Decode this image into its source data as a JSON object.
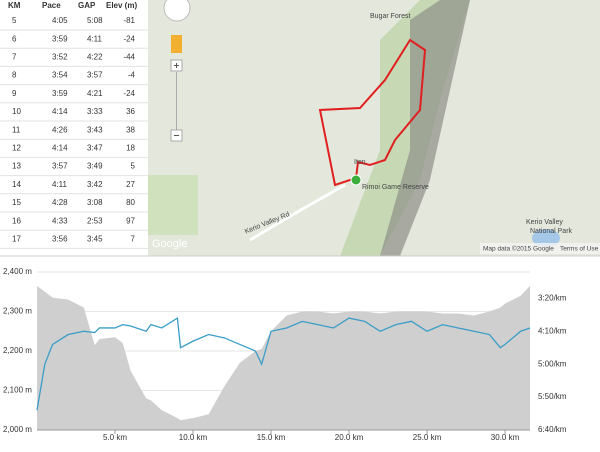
{
  "table": {
    "headers": [
      "KM",
      "Pace",
      "GAP",
      "Elev (m)"
    ],
    "rows": [
      [
        "5",
        "4:05",
        "5:08",
        "-81"
      ],
      [
        "6",
        "3:59",
        "4:11",
        "-24"
      ],
      [
        "7",
        "3:52",
        "4:22",
        "-44"
      ],
      [
        "8",
        "3:54",
        "3:57",
        "-4"
      ],
      [
        "9",
        "3:59",
        "4:21",
        "-24"
      ],
      [
        "10",
        "4:14",
        "3:33",
        "36"
      ],
      [
        "11",
        "4:26",
        "3:43",
        "38"
      ],
      [
        "12",
        "4:14",
        "3:47",
        "18"
      ],
      [
        "13",
        "3:57",
        "3:49",
        "5"
      ],
      [
        "14",
        "4:11",
        "3:42",
        "27"
      ],
      [
        "15",
        "4:28",
        "3:08",
        "80"
      ],
      [
        "16",
        "4:33",
        "2:53",
        "97"
      ],
      [
        "17",
        "3:56",
        "3:45",
        "7"
      ]
    ]
  },
  "map": {
    "labels": [
      "Bugar Forest",
      "Iten",
      "Rimoi Game Reserve",
      "Kerio Valley",
      "National Park",
      "Kerio Valley Rd"
    ],
    "logo": "Google",
    "attribution": "Map data ©2015 Google",
    "terms": "Terms of Use"
  },
  "chart_data": {
    "type": "line",
    "x": [
      0,
      0.5,
      1,
      2,
      3,
      3.7,
      4,
      5,
      5.5,
      6,
      7,
      7.3,
      8,
      9,
      9.2,
      10,
      11,
      12,
      13,
      14,
      14.4,
      15,
      16,
      17,
      18,
      19,
      20,
      21,
      22,
      23,
      24,
      25,
      26,
      27,
      28,
      29,
      29.7,
      30,
      31,
      31.6
    ],
    "series": [
      {
        "name": "Elevation",
        "color": "#cfcfcf",
        "values": [
          2365,
          2350,
          2335,
          2330,
          2310,
          2215,
          2230,
          2235,
          2220,
          2150,
          2080,
          2075,
          2050,
          2030,
          2025,
          2030,
          2040,
          2110,
          2170,
          2200,
          2205,
          2250,
          2290,
          2300,
          2300,
          2295,
          2300,
          2300,
          2295,
          2300,
          2300,
          2300,
          2295,
          2295,
          2290,
          2300,
          2310,
          2320,
          2340,
          2365
        ]
      },
      {
        "name": "Pace",
        "color": "#3a9dc8",
        "axis": "y2",
        "values": [
          370,
          300,
          270,
          255,
          250,
          252,
          245,
          245,
          240,
          242,
          250,
          240,
          245,
          230,
          275,
          265,
          255,
          260,
          270,
          280,
          300,
          250,
          245,
          235,
          240,
          245,
          230,
          235,
          250,
          240,
          235,
          250,
          240,
          245,
          250,
          255,
          275,
          270,
          250,
          245
        ]
      }
    ],
    "xlim": [
      0,
      31.6
    ],
    "ylim": [
      2000,
      2400
    ],
    "y2lim": [
      400,
      160
    ],
    "xticks": [
      {
        "value": 5,
        "label": "5.0 km"
      },
      {
        "value": 10,
        "label": "10.0 km"
      },
      {
        "value": 15,
        "label": "15.0 km"
      },
      {
        "value": 20,
        "label": "20.0 km"
      },
      {
        "value": 25,
        "label": "25.0 km"
      },
      {
        "value": 30,
        "label": "30.0 km"
      }
    ],
    "yticks": [
      {
        "value": 2000,
        "label": "2,000 m"
      },
      {
        "value": 2100,
        "label": "2,100 m"
      },
      {
        "value": 2200,
        "label": "2,200 m"
      },
      {
        "value": 2300,
        "label": "2,300 m"
      },
      {
        "value": 2400,
        "label": "2,400 m"
      }
    ],
    "y2ticks": [
      {
        "value": 200,
        "label": "3:20/km"
      },
      {
        "value": 250,
        "label": "4:10/km"
      },
      {
        "value": 300,
        "label": "5:00/km"
      },
      {
        "value": 350,
        "label": "5:50/km"
      },
      {
        "value": 400,
        "label": "6:40/km"
      }
    ],
    "grid": true
  }
}
